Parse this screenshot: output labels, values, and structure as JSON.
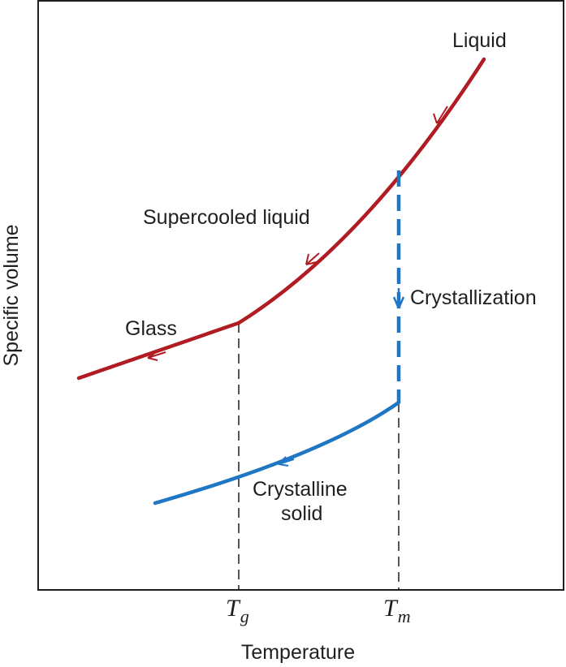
{
  "axes": {
    "x_label": "Temperature",
    "y_label": "Specific volume"
  },
  "ticks": {
    "tg": {
      "main": "T",
      "sub": "g"
    },
    "tm": {
      "main": "T",
      "sub": "m"
    }
  },
  "labels": {
    "liquid": "Liquid",
    "supercooled": "Supercooled liquid",
    "glass": "Glass",
    "crystallization": "Crystallization",
    "crystalline_line1": "Crystalline",
    "crystalline_line2": "solid"
  },
  "colors": {
    "liquid_curve": "#b01c22",
    "crystal_curve": "#1f77c4",
    "axis": "#1f1f1f"
  }
}
